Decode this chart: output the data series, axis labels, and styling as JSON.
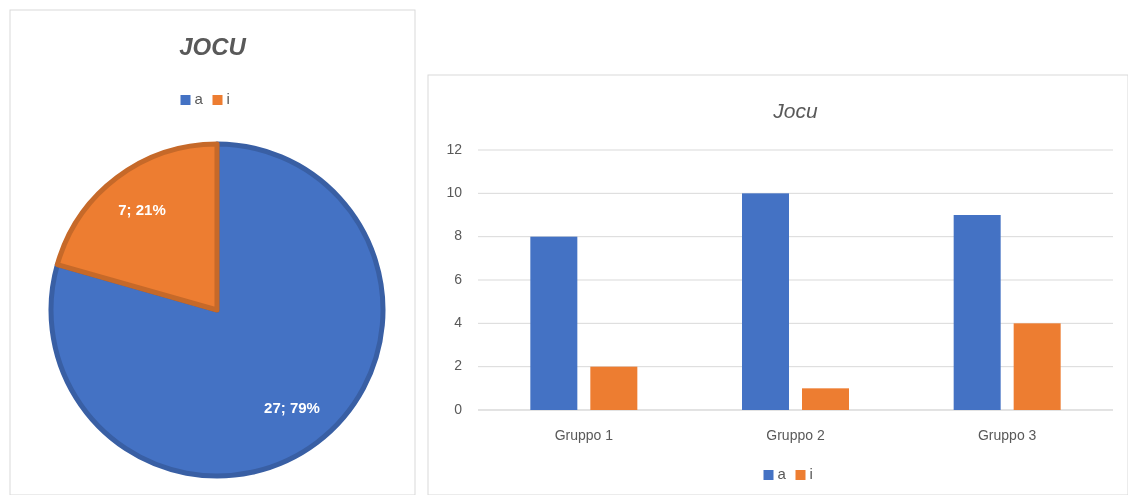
{
  "chart_data": [
    {
      "type": "pie",
      "title": "JOCU",
      "categories": [
        "a",
        "i"
      ],
      "values": [
        27,
        7
      ],
      "colors": [
        "#4472c4",
        "#ed7d31"
      ],
      "value_labels": [
        "27; 79%",
        "7; 21%"
      ],
      "legend": "top"
    },
    {
      "type": "bar",
      "title": "Jocu",
      "categories": [
        "Gruppo 1",
        "Gruppo 2",
        "Gruppo 3"
      ],
      "series": [
        {
          "name": "a",
          "color": "#4472c4",
          "values": [
            8,
            10,
            9
          ]
        },
        {
          "name": "i",
          "color": "#ed7d31",
          "values": [
            2,
            1,
            4
          ]
        }
      ],
      "ylim": [
        0,
        12
      ],
      "yticks": [
        0,
        2,
        4,
        6,
        8,
        10,
        12
      ],
      "grid": "y",
      "legend": "bottom"
    }
  ]
}
